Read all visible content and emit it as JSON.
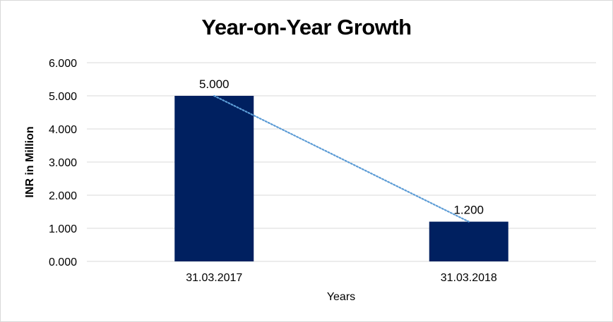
{
  "chart_data": {
    "type": "bar",
    "title": "Year-on-Year Growth",
    "xlabel": "Years",
    "ylabel": "INR in Million",
    "categories": [
      "31.03.2017",
      "31.03.2018"
    ],
    "values": [
      5.0,
      1.2
    ],
    "data_labels": [
      "5.000",
      "1.200"
    ],
    "ylim": [
      0,
      6
    ],
    "yticks": [
      0,
      1,
      2,
      3,
      4,
      5,
      6
    ],
    "ytick_labels": [
      "0.000",
      "1.000",
      "2.000",
      "3.000",
      "4.000",
      "5.000",
      "6.000"
    ],
    "grid": true,
    "trendline": "linear (dotted)",
    "colors": {
      "bar": "#002060",
      "trendline": "#5b9bd5",
      "grid": "#d9d9d9"
    }
  }
}
